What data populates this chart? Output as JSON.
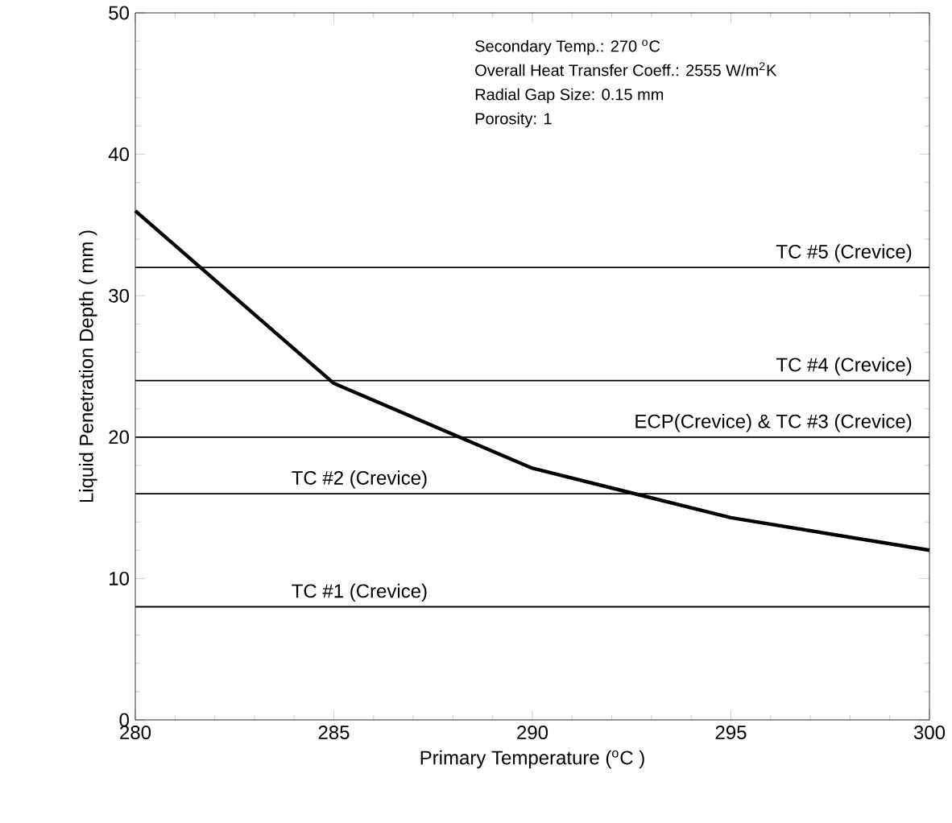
{
  "chart_data": {
    "type": "line",
    "xlabel": "Primary Temperature ($^{o}$C )",
    "ylabel": "Liquid Penetration Depth ( mm )",
    "x": [
      280,
      285,
      290,
      295,
      300
    ],
    "series": [
      {
        "color": "#000000",
        "values": [
          36,
          23.8,
          17.8,
          14.3,
          12
        ]
      }
    ],
    "xlim": [
      280,
      300
    ],
    "xticks": [
      280,
      285,
      290,
      295,
      300
    ],
    "ylim": [
      0,
      50
    ],
    "yticks": [
      0,
      10,
      20,
      30,
      40,
      50
    ],
    "grid": false,
    "marker": "none",
    "line_style": "solid",
    "ref_lines": [
      {
        "axis": "y",
        "value": 32,
        "label": "TC #5 (Crevice)",
        "color": "#000000"
      },
      {
        "axis": "y",
        "value": 24,
        "label": "TC #4 (Crevice)",
        "color": "#000000"
      },
      {
        "axis": "y",
        "value": 20,
        "label": "ECP(Crevice) & TC #3 (Crevice)",
        "color": "#000000"
      },
      {
        "axis": "y",
        "value": 16,
        "label": "TC #2 (Crevice)",
        "color": "#000000"
      },
      {
        "axis": "y",
        "value": 8,
        "label": "TC #1 (Crevice)",
        "color": "#000000"
      }
    ],
    "annotations": [
      "Secondary Temp.: 270 $^{o}$C",
      "Overall Heat Transfer Coeff.: 2555 W/m$^{2}$K",
      "Radial Gap Size: 0.15 mm",
      "Porosity: 1"
    ]
  }
}
